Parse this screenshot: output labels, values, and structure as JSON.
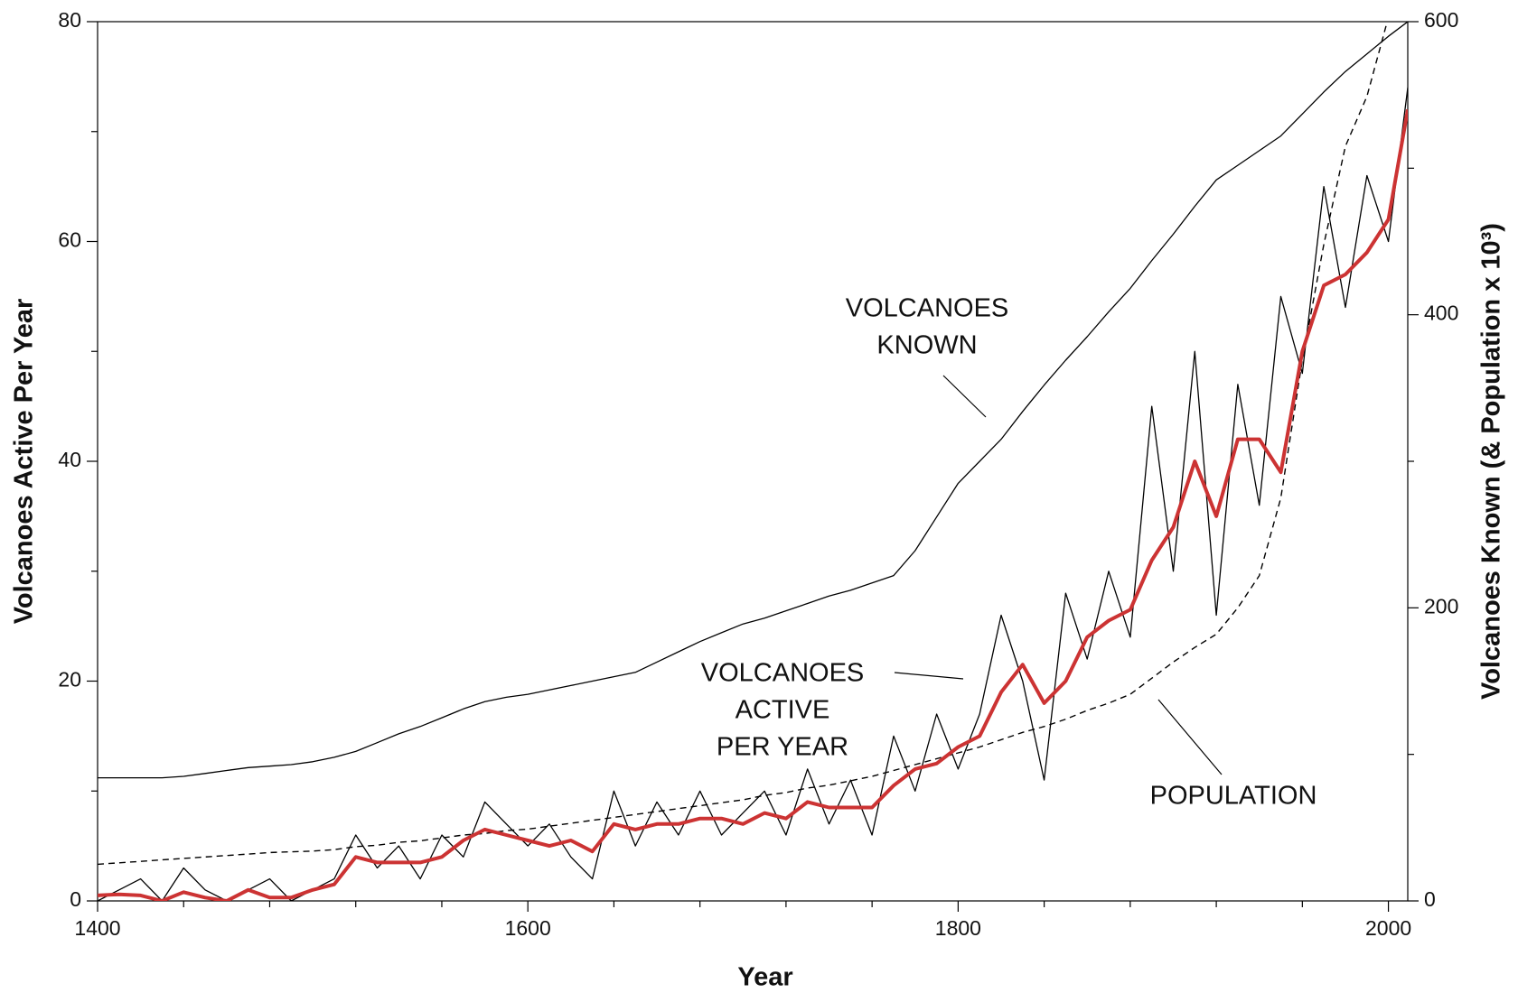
{
  "chart_data": {
    "type": "line",
    "xlabel": "Year",
    "ylabel": "Volcanoes Active Per Year",
    "y2label": "Volcanoes Known (& Population x 10³)",
    "x": [
      1400,
      1410,
      1420,
      1430,
      1440,
      1450,
      1460,
      1470,
      1480,
      1490,
      1500,
      1510,
      1520,
      1530,
      1540,
      1550,
      1560,
      1570,
      1580,
      1590,
      1600,
      1610,
      1620,
      1630,
      1640,
      1650,
      1660,
      1670,
      1680,
      1690,
      1700,
      1710,
      1720,
      1730,
      1740,
      1750,
      1760,
      1770,
      1780,
      1790,
      1800,
      1810,
      1820,
      1830,
      1840,
      1850,
      1860,
      1870,
      1880,
      1890,
      1900,
      1910,
      1920,
      1930,
      1940,
      1950,
      1960,
      1970,
      1980,
      1990,
      2000,
      2009
    ],
    "series": [
      {
        "name": "Volcanoes active per year",
        "color": "#000000",
        "style": "thin",
        "axis": "y",
        "values": [
          0,
          1,
          2,
          0,
          3,
          1,
          0,
          1,
          2,
          0,
          1,
          2,
          6,
          3,
          5,
          2,
          6,
          4,
          9,
          7,
          5,
          7,
          4,
          2,
          10,
          5,
          9,
          6,
          10,
          6,
          8,
          10,
          6,
          12,
          7,
          11,
          6,
          15,
          10,
          17,
          12,
          17,
          26,
          20,
          11,
          28,
          22,
          30,
          24,
          45,
          30,
          50,
          26,
          47,
          36,
          55,
          48,
          65,
          54,
          66,
          60,
          74
        ]
      },
      {
        "name": "Running mean",
        "color": "#cc3333",
        "style": "thick",
        "axis": "y",
        "values": [
          0.5,
          0.6,
          0.5,
          0,
          0.8,
          0.3,
          0,
          1,
          0.3,
          0.3,
          1,
          1.5,
          4,
          3.5,
          3.5,
          3.5,
          4,
          5.5,
          6.5,
          6,
          5.5,
          5,
          5.5,
          4.5,
          7,
          6.5,
          7,
          7,
          7.5,
          7.5,
          7,
          8,
          7.5,
          9,
          8.5,
          8.5,
          8.5,
          10.5,
          12,
          12.5,
          14,
          15,
          19,
          21.5,
          18,
          20,
          24,
          25.5,
          26.5,
          31,
          34,
          40,
          35,
          42,
          42,
          39,
          50,
          56,
          57,
          59,
          62,
          72
        ]
      },
      {
        "name": "Volcanoes known",
        "color": "#000000",
        "style": "thin",
        "axis": "y2",
        "values": [
          84,
          84,
          84,
          84,
          85,
          87,
          89,
          91,
          92,
          93,
          95,
          98,
          102,
          108,
          114,
          119,
          125,
          131,
          136,
          139,
          141,
          144,
          147,
          150,
          153,
          156,
          163,
          170,
          177,
          183,
          189,
          193,
          198,
          203,
          208,
          212,
          217,
          222,
          239,
          262,
          285,
          300,
          315,
          334,
          352,
          369,
          385,
          402,
          418,
          437,
          455,
          474,
          492,
          502,
          512,
          522,
          537,
          552,
          566,
          578,
          590,
          600
        ]
      },
      {
        "name": "Population",
        "color": "#000000",
        "style": "dashed",
        "axis": "y2",
        "values": [
          25,
          26,
          27,
          28,
          29,
          30,
          31,
          32,
          33,
          33.5,
          34,
          35,
          37,
          38,
          40,
          41,
          43,
          45,
          46,
          48,
          49,
          51,
          53,
          55,
          57,
          59,
          61,
          63,
          65,
          67,
          69,
          72,
          74,
          77,
          79,
          82,
          85,
          89,
          93,
          97,
          101,
          105,
          110,
          115,
          119,
          124,
          130,
          135,
          141,
          152,
          163,
          173,
          182,
          200,
          222,
          275,
          369,
          448,
          515,
          549,
          603,
          640
        ]
      }
    ],
    "annotations": [
      {
        "lines": [
          "VOLCANOES",
          "KNOWN"
        ]
      },
      {
        "lines": [
          "VOLCANOES",
          "ACTIVE",
          "PER YEAR"
        ]
      },
      {
        "lines": [
          "POPULATION"
        ]
      }
    ],
    "xlim": [
      1400,
      2009
    ],
    "xticks": [
      1400,
      1600,
      1800,
      2000
    ],
    "xminorticks": [
      1440,
      1480,
      1520,
      1560,
      1640,
      1680,
      1720,
      1760,
      1840,
      1880,
      1920,
      1960
    ],
    "ylim": [
      0,
      80
    ],
    "yticks": [
      0,
      20,
      40,
      60,
      80
    ],
    "yminorticks": [
      10,
      30,
      50,
      70
    ],
    "y2lim": [
      0,
      600
    ],
    "y2ticks": [
      0,
      200,
      400,
      600
    ],
    "y2minorticks": [
      100,
      300,
      500
    ],
    "grid": false
  }
}
